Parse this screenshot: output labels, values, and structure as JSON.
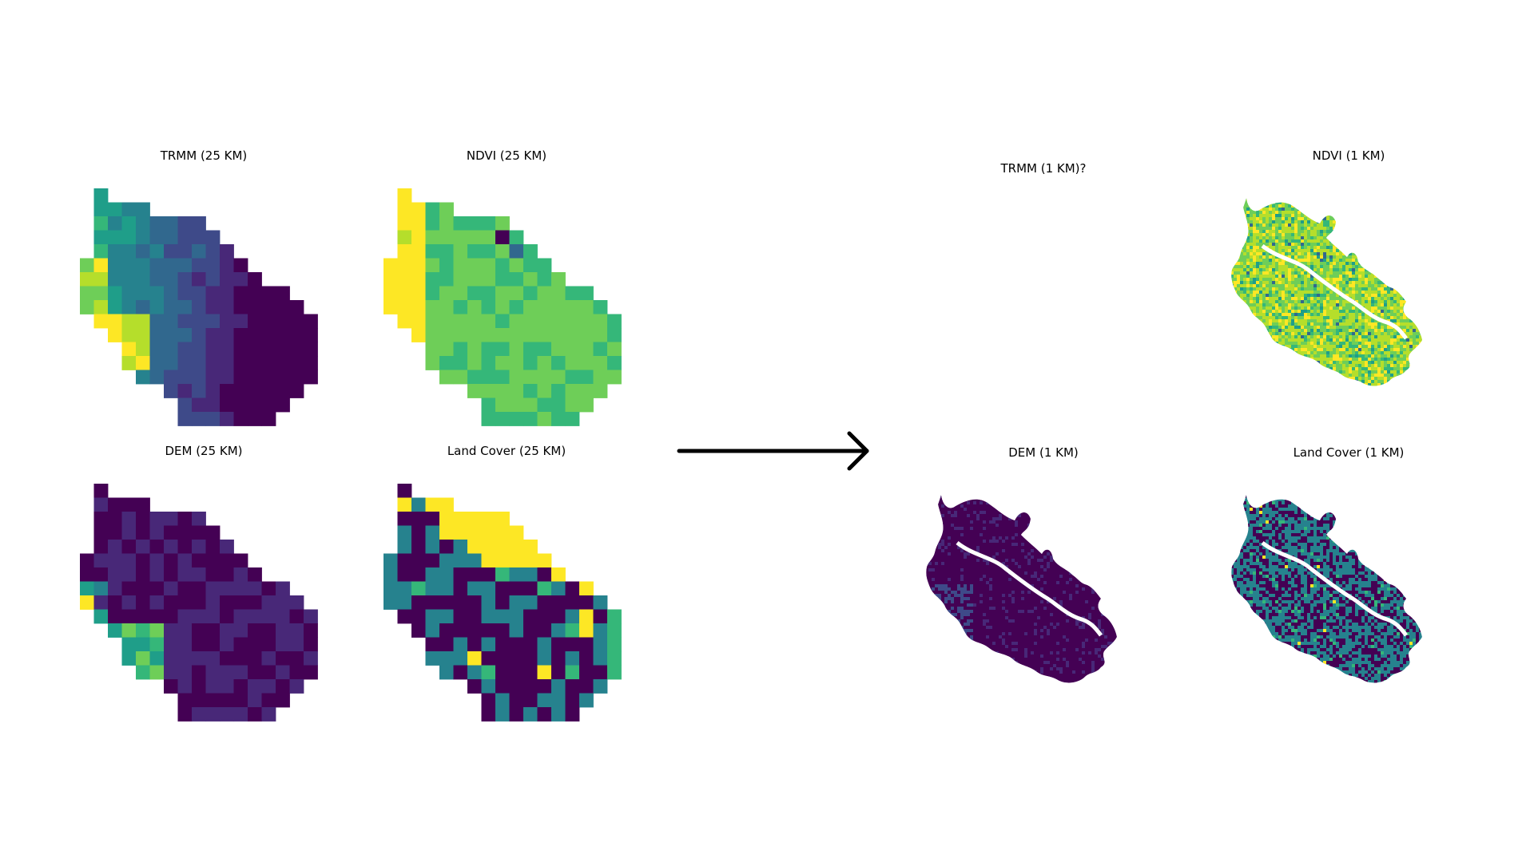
{
  "panels": {
    "trmm_25": {
      "title": "TRMM (25 KM)"
    },
    "ndvi_25": {
      "title": "NDVI (25 KM)"
    },
    "dem_25": {
      "title": "DEM (25 KM)"
    },
    "landcover_25": {
      "title": "Land Cover (25 KM)"
    },
    "trmm_1": {
      "title": "TRMM (1 KM)?"
    },
    "ndvi_1": {
      "title": "NDVI (1 KM)"
    },
    "dem_1": {
      "title": "DEM (1 KM)"
    },
    "landcover_1": {
      "title": "Land Cover (1 KM)"
    }
  },
  "colors": {
    "viridis": [
      "#440154",
      "#482878",
      "#3e4a89",
      "#31688e",
      "#26828e",
      "#1f9e89",
      "#35b779",
      "#6ece58",
      "#b5de2b",
      "#fde725"
    ],
    "arrow": "#000000"
  },
  "arrow": {
    "direction": "right",
    "from": "25 KM",
    "to": "1 KM"
  }
}
